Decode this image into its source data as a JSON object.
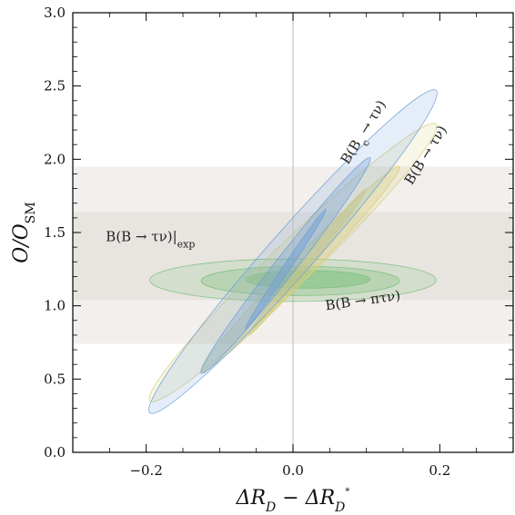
{
  "chart_data": {
    "type": "contour",
    "xlabel": "ΔR_D − ΔR_D*",
    "ylabel": "O/O_SM",
    "xlim": [
      -0.3,
      0.3
    ],
    "ylim": [
      0.0,
      3.0
    ],
    "xticks": [
      -0.2,
      0.0,
      0.2
    ],
    "xtick_labels": [
      "−0.2",
      "0.0",
      "0.2"
    ],
    "yticks": [
      0.0,
      0.5,
      1.0,
      1.5,
      2.0,
      2.5,
      3.0
    ],
    "ytick_labels": [
      "0.0",
      "0.5",
      "1.0",
      "1.5",
      "2.0",
      "2.5",
      "3.0"
    ],
    "vertical_reference_line_x": 0.0,
    "bands": [
      {
        "label": "B(B → τν)|exp",
        "level": "outer",
        "y_range": [
          0.74,
          1.95
        ],
        "color": "#f3efec"
      },
      {
        "label": "B(B → τν)|exp",
        "level": "inner",
        "y_range": [
          1.04,
          1.64
        ],
        "color": "#e8e4e0"
      }
    ],
    "series": [
      {
        "name": "B(B_c → τν)",
        "color": "#6f9fd6",
        "regions": [
          {
            "level": "outer",
            "center": [
              0.0,
              1.38
            ],
            "extent_x": [
              -0.195,
              0.195
            ],
            "extent_y": [
              0.27,
              2.47
            ]
          },
          {
            "level": "middle",
            "center": [
              -0.01,
              1.28
            ],
            "extent_x": [
              -0.125,
              0.105
            ],
            "extent_y": [
              0.54,
              2.01
            ]
          },
          {
            "level": "inner",
            "center": [
              -0.01,
              1.25
            ],
            "extent_x": [
              -0.065,
              0.045
            ],
            "extent_y": [
              0.84,
              1.66
            ]
          }
        ]
      },
      {
        "name": "B(B → τν)",
        "color": "#d6cf7a",
        "regions": [
          {
            "level": "outer",
            "center": [
              0.0,
              1.29
            ],
            "extent_x": [
              -0.195,
              0.195
            ],
            "extent_y": [
              0.35,
              2.24
            ]
          },
          {
            "level": "middle",
            "center": [
              0.0,
              1.25
            ],
            "extent_x": [
              -0.125,
              0.145
            ],
            "extent_y": [
              0.55,
              1.95
            ]
          },
          {
            "level": "inner",
            "center": [
              0.02,
              1.3
            ],
            "extent_x": [
              -0.06,
              0.1
            ],
            "extent_y": [
              0.8,
              1.8
            ]
          }
        ]
      },
      {
        "name": "B(B → πτν)",
        "color": "#7cc07c",
        "regions": [
          {
            "level": "outer",
            "center": [
              0.0,
              1.18
            ],
            "extent_x": [
              -0.195,
              0.195
            ],
            "extent_y": [
              1.03,
              1.32
            ]
          },
          {
            "level": "middle",
            "center": [
              0.0,
              1.17
            ],
            "extent_x": [
              -0.125,
              0.145
            ],
            "extent_y": [
              1.07,
              1.27
            ]
          },
          {
            "level": "inner",
            "center": [
              0.0,
              1.18
            ],
            "extent_x": [
              -0.065,
              0.105
            ],
            "extent_y": [
              1.12,
              1.24
            ]
          }
        ]
      }
    ],
    "annotations": [
      {
        "text": "B(B_c → τν)",
        "rotation_deg": -58
      },
      {
        "text": "B(B → τν)",
        "rotation_deg": -58
      },
      {
        "text": "B(B → τν)|exp",
        "rotation_deg": 0
      },
      {
        "text": "B(B → πτν)",
        "rotation_deg": -8
      }
    ]
  }
}
